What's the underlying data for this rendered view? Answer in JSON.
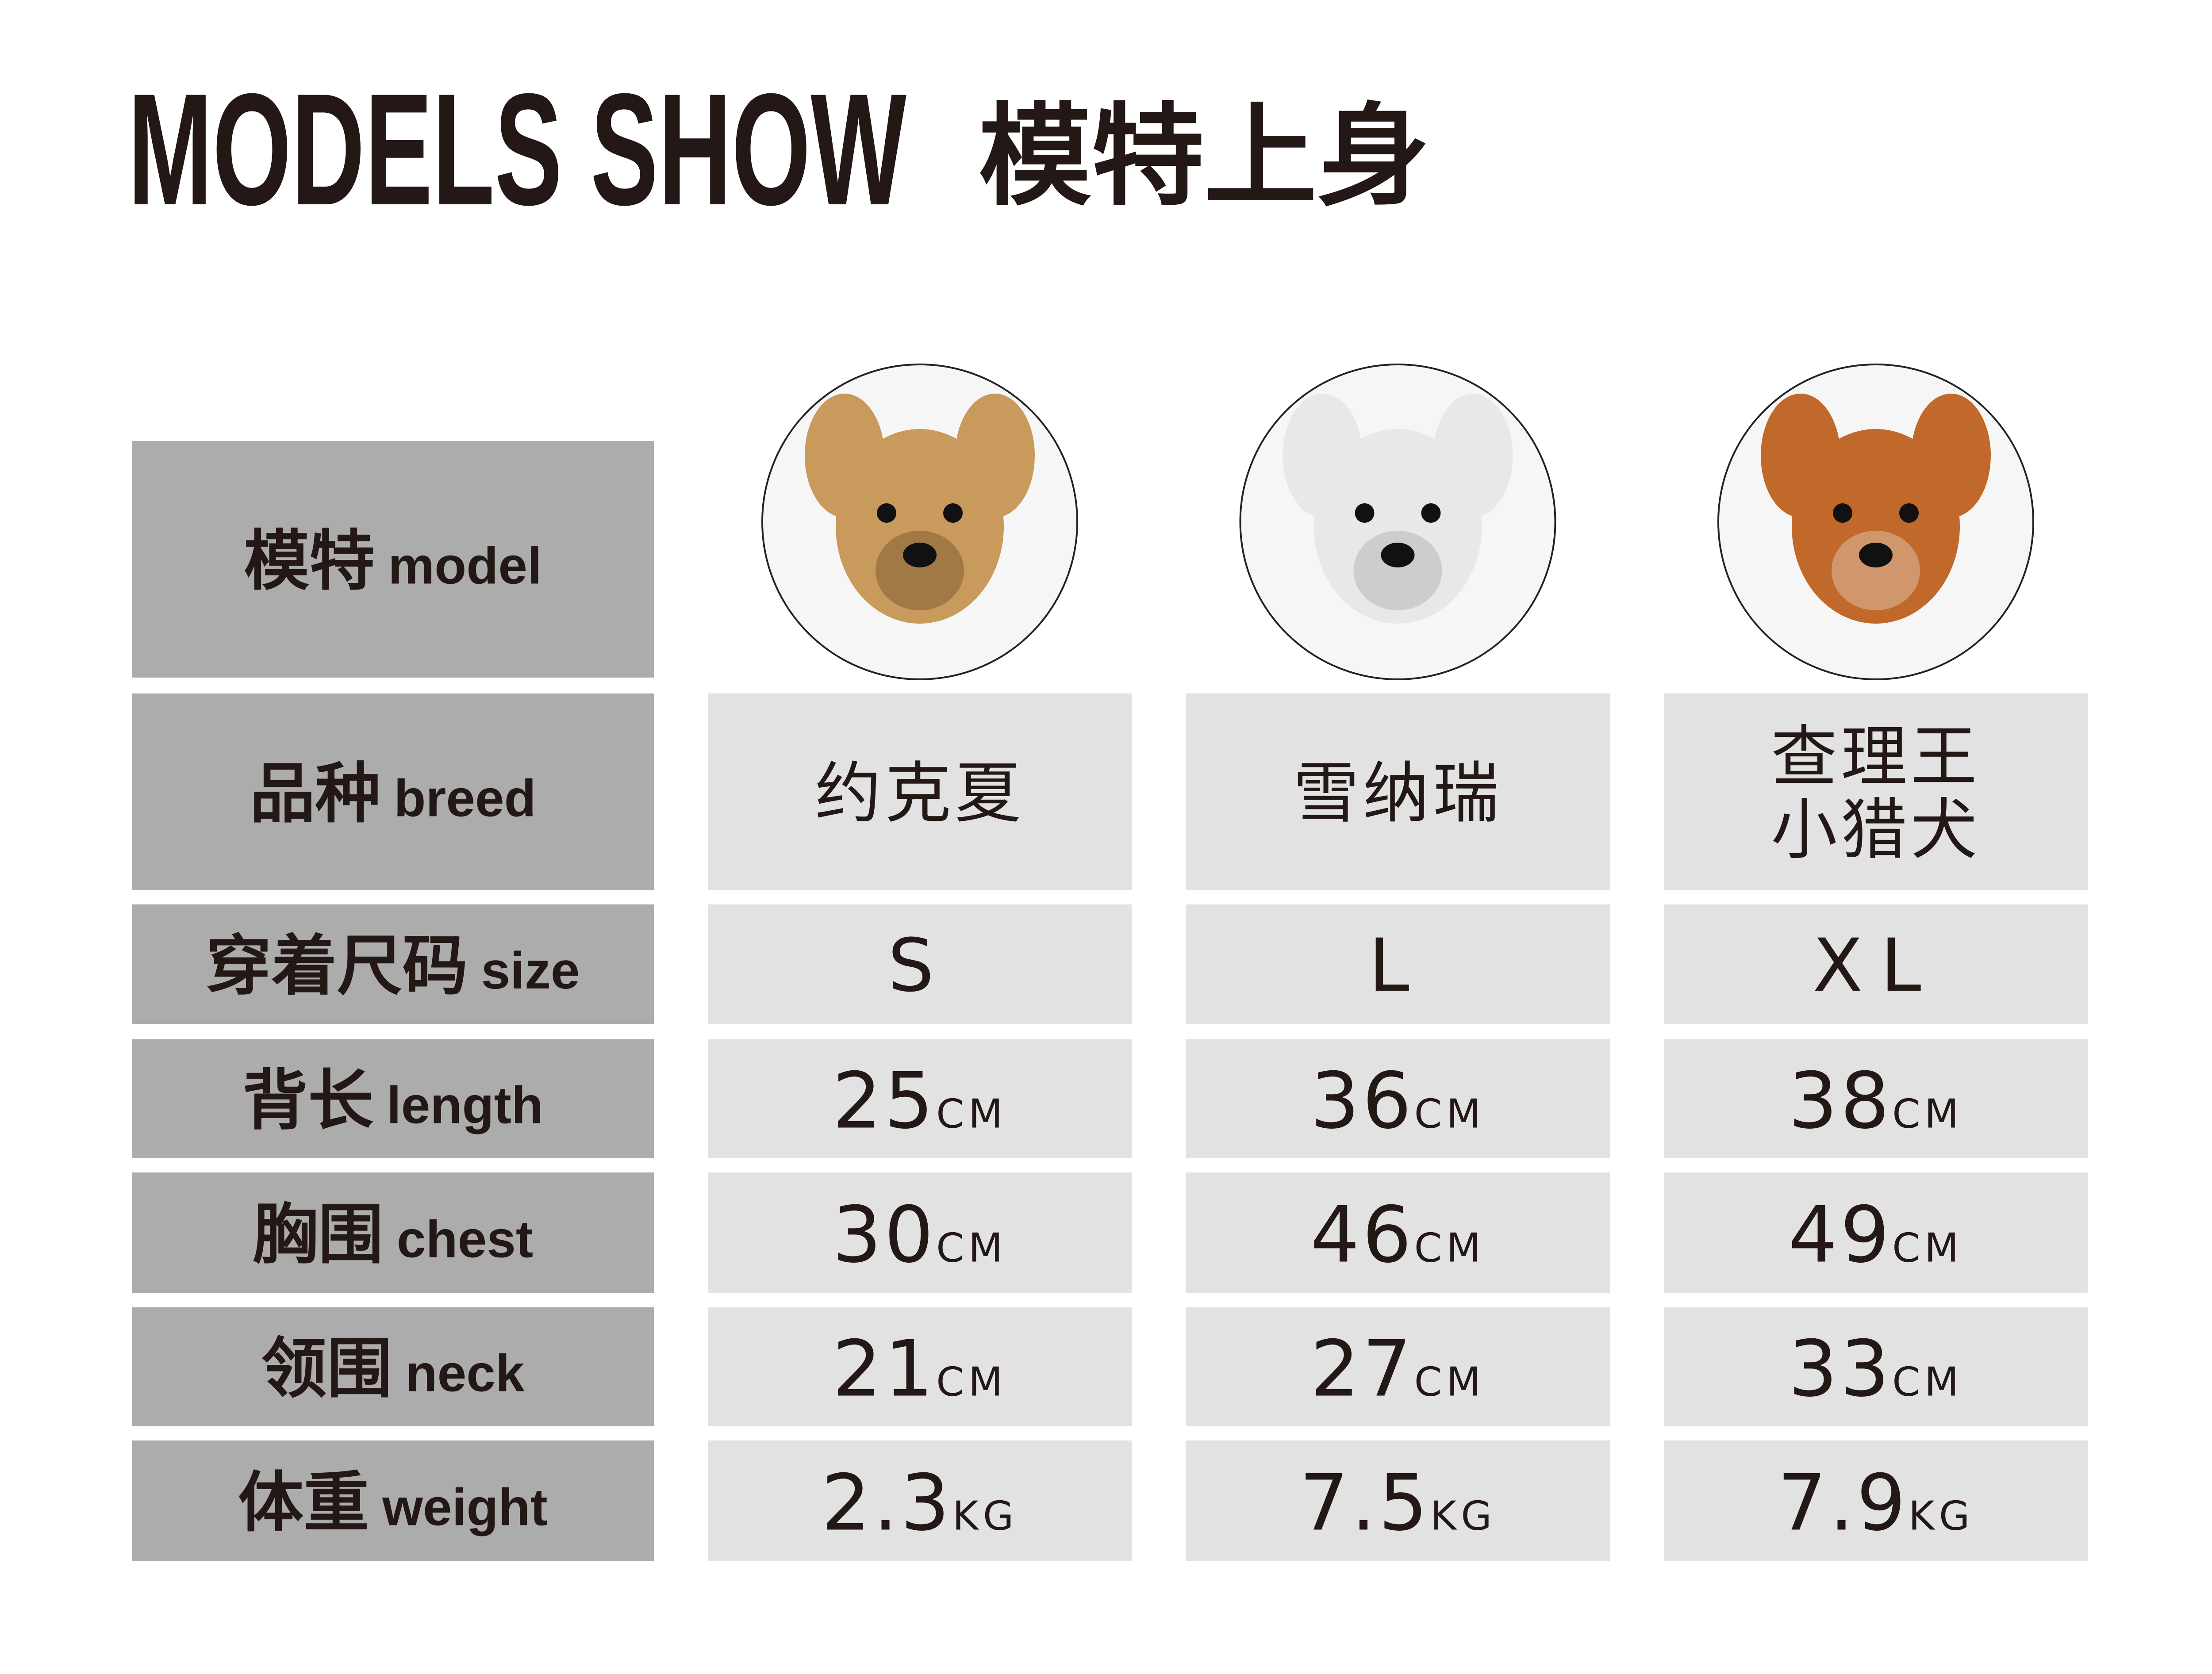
{
  "header": {
    "title": "MODELS SHOW",
    "subtitle": "模特上身"
  },
  "table": {
    "row_headers": [
      {
        "cn": "模特",
        "en": "model"
      },
      {
        "cn": "品种",
        "en": "breed"
      },
      {
        "cn": "穿着尺码",
        "en": "size"
      },
      {
        "cn": "背长",
        "en": "length"
      },
      {
        "cn": "胸围",
        "en": "chest"
      },
      {
        "cn": "领围",
        "en": "neck"
      },
      {
        "cn": "体重",
        "en": "weight"
      }
    ],
    "columns": [
      {
        "breed": [
          "约克夏"
        ],
        "size": "S",
        "length": {
          "value": "25",
          "unit": "CM"
        },
        "chest": {
          "value": "30",
          "unit": "CM"
        },
        "neck": {
          "value": "21",
          "unit": "CM"
        },
        "weight": {
          "value": "2.3",
          "unit": "KG"
        }
      },
      {
        "breed": [
          "雪纳瑞"
        ],
        "size": "L",
        "length": {
          "value": "36",
          "unit": "CM"
        },
        "chest": {
          "value": "46",
          "unit": "CM"
        },
        "neck": {
          "value": "27",
          "unit": "CM"
        },
        "weight": {
          "value": "7.5",
          "unit": "KG"
        }
      },
      {
        "breed": [
          "查理王",
          "小猎犬"
        ],
        "size": "XL",
        "length": {
          "value": "38",
          "unit": "CM"
        },
        "chest": {
          "value": "49",
          "unit": "CM"
        },
        "neck": {
          "value": "33",
          "unit": "CM"
        },
        "weight": {
          "value": "7.9",
          "unit": "KG"
        }
      }
    ]
  }
}
